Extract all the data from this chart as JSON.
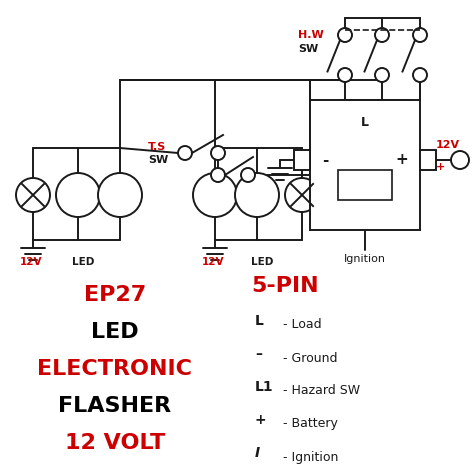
{
  "bg_color": "#ffffff",
  "line_color": "#1a1a1a",
  "red_color": "#cc0000",
  "title_left_lines": [
    {
      "text": "EP27",
      "color": "#cc0000",
      "fontsize": 16,
      "bold": true
    },
    {
      "text": "LED",
      "color": "#000000",
      "fontsize": 16,
      "bold": true
    },
    {
      "text": "ELECTRONIC",
      "color": "#cc0000",
      "fontsize": 16,
      "bold": true
    },
    {
      "text": "FLASHER",
      "color": "#000000",
      "fontsize": 16,
      "bold": true
    },
    {
      "text": "12 VOLT",
      "color": "#cc0000",
      "fontsize": 16,
      "bold": true
    }
  ],
  "pin_title": "5-PIN",
  "legend_items": [
    {
      "symbol": "L",
      "desc": "- Load",
      "italic": false
    },
    {
      "symbol": "–",
      "desc": "- Ground",
      "italic": false
    },
    {
      "symbol": "L1",
      "desc": "- Hazard SW",
      "italic": false
    },
    {
      "symbol": "+",
      "desc": "- Battery",
      "italic": false
    },
    {
      "symbol": "I",
      "desc": "- Ignition",
      "italic": true
    }
  ]
}
